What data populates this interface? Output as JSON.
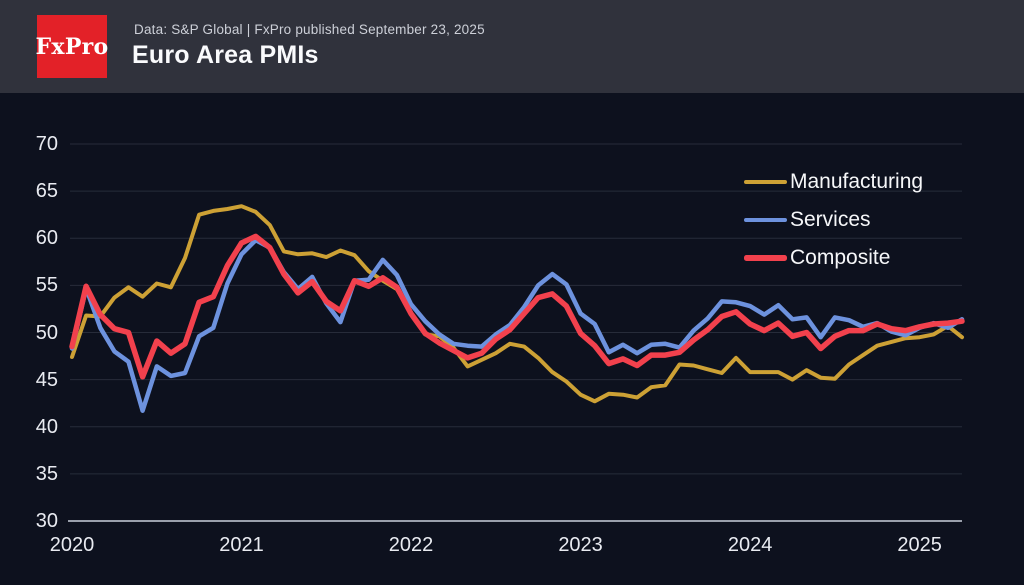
{
  "header": {
    "logo_text": "FxPro",
    "meta": "Data: S&P Global | FxPro published September 23, 2025",
    "title": "Euro Area PMIs"
  },
  "colors": {
    "page_background": "#0d111e",
    "header_background": "#30323c",
    "logo_red": "#e32128",
    "gridline": "#272c3a",
    "axis_line": "#9aa0ac",
    "tick_text": "#e9ebf1",
    "legend_text": "#f6f7f9"
  },
  "chart_data": {
    "type": "line",
    "title": "Euro Area PMIs",
    "x_start": "2020-06",
    "x_frequency": "monthly",
    "x_tick_indices": [
      0,
      12,
      24,
      36,
      48,
      60
    ],
    "x_tick_labels": [
      "2020",
      "2021",
      "2022",
      "2023",
      "2024",
      "2025"
    ],
    "yticks": [
      30,
      35,
      40,
      45,
      50,
      55,
      60,
      65,
      70
    ],
    "ylim": [
      30,
      70
    ],
    "grid": "horizontal",
    "legend_position": "top-right",
    "series": [
      {
        "name": "Manufacturing",
        "color": "#cda135",
        "stroke_width": 4,
        "values": [
          47.4,
          51.8,
          51.7,
          53.7,
          54.8,
          53.8,
          55.2,
          54.8,
          57.9,
          62.5,
          62.9,
          63.1,
          63.4,
          62.8,
          61.4,
          58.6,
          58.3,
          58.4,
          58.0,
          58.7,
          58.2,
          56.5,
          55.5,
          54.6,
          52.1,
          49.8,
          49.6,
          48.4,
          46.4,
          47.1,
          47.8,
          48.8,
          48.5,
          47.3,
          45.8,
          44.8,
          43.4,
          42.7,
          43.5,
          43.4,
          43.1,
          44.2,
          44.4,
          46.6,
          46.5,
          46.1,
          45.7,
          47.3,
          45.8,
          45.8,
          45.8,
          45.0,
          46.0,
          45.2,
          45.1,
          46.6,
          47.6,
          48.6,
          49.0,
          49.4,
          49.5,
          49.8,
          50.7,
          49.5
        ]
      },
      {
        "name": "Services",
        "color": "#6d92de",
        "stroke_width": 4.5,
        "values": [
          48.3,
          54.7,
          50.5,
          48.0,
          46.9,
          41.7,
          46.4,
          45.4,
          45.7,
          49.6,
          50.5,
          55.2,
          58.3,
          59.8,
          59.0,
          56.4,
          54.6,
          55.9,
          53.1,
          51.1,
          55.5,
          55.6,
          57.7,
          56.1,
          53.0,
          51.2,
          49.8,
          48.8,
          48.6,
          48.5,
          49.8,
          50.8,
          52.7,
          55.0,
          56.2,
          55.1,
          52.0,
          50.9,
          47.9,
          48.7,
          47.8,
          48.7,
          48.8,
          48.4,
          50.2,
          51.5,
          53.3,
          53.2,
          52.8,
          51.9,
          52.9,
          51.4,
          51.6,
          49.5,
          51.6,
          51.3,
          50.6,
          51.0,
          50.1,
          49.7,
          50.5,
          51.0,
          50.5,
          51.4
        ]
      },
      {
        "name": "Composite",
        "color": "#f2414d",
        "stroke_width": 5.5,
        "values": [
          48.5,
          54.9,
          51.9,
          50.4,
          50.0,
          45.3,
          49.1,
          47.8,
          48.8,
          53.2,
          53.8,
          57.1,
          59.5,
          60.2,
          59.0,
          56.2,
          54.2,
          55.4,
          53.3,
          52.3,
          55.5,
          54.9,
          55.8,
          54.8,
          52.0,
          49.9,
          48.9,
          48.1,
          47.3,
          47.8,
          49.3,
          50.3,
          52.0,
          53.7,
          54.1,
          52.8,
          49.9,
          48.6,
          46.7,
          47.2,
          46.5,
          47.6,
          47.6,
          47.9,
          49.2,
          50.3,
          51.7,
          52.2,
          50.9,
          50.2,
          51.0,
          49.6,
          50.0,
          48.3,
          49.6,
          50.2,
          50.2,
          50.9,
          50.4,
          50.2,
          50.6,
          50.9,
          51.0,
          51.2
        ]
      }
    ]
  }
}
